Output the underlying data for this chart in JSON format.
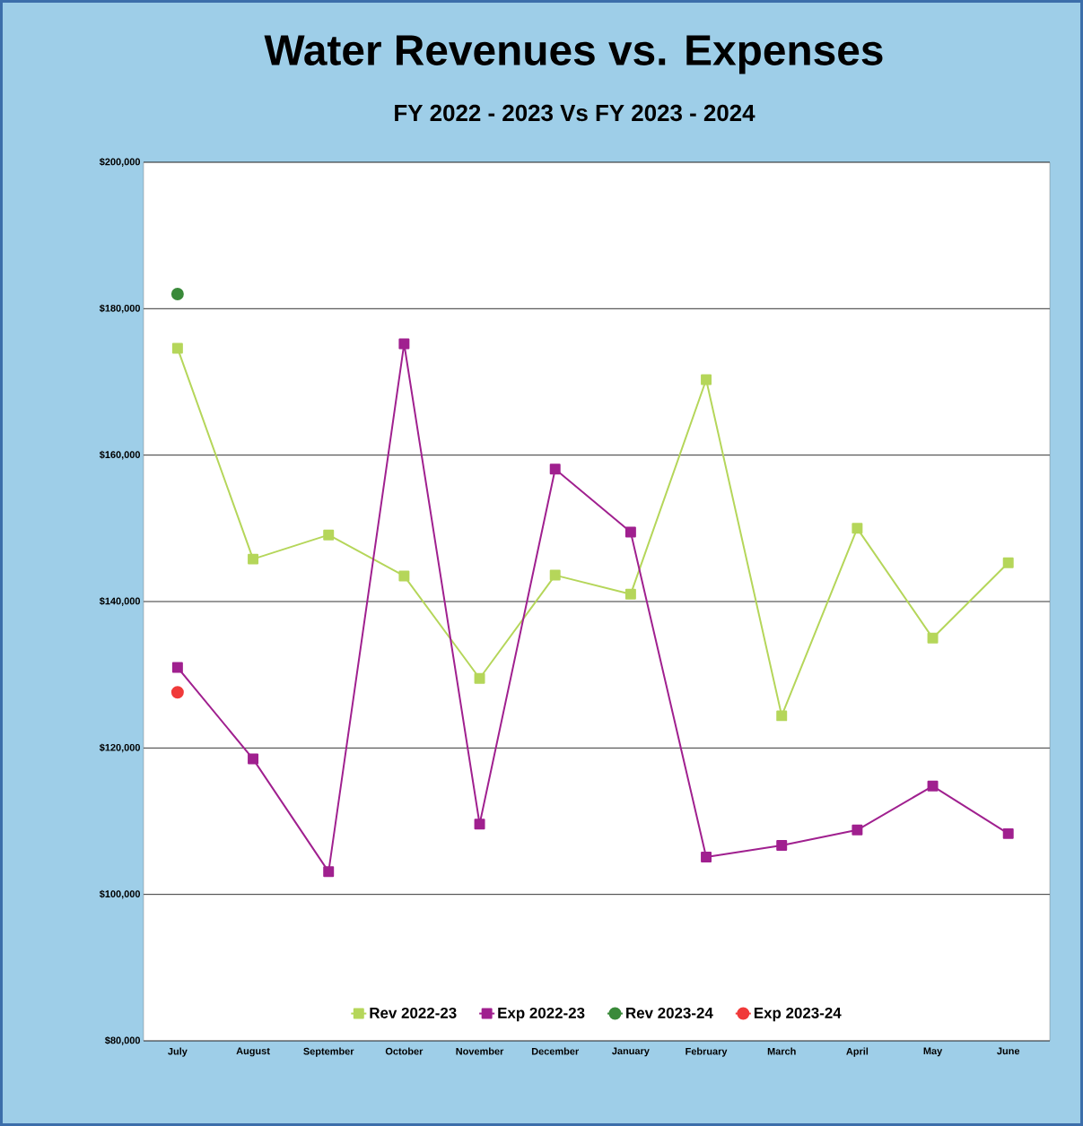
{
  "chart_data": {
    "type": "line",
    "title": "Water Revenues vs. Expenses",
    "subtitle": "FY 2022 - 2023  Vs  FY 2023 - 2024",
    "categories": [
      "July",
      "August",
      "September",
      "October",
      "November",
      "December",
      "January",
      "February",
      "March",
      "April",
      "May",
      "June"
    ],
    "series": [
      {
        "name": "Rev 2022-23",
        "color": "#b5d65a",
        "marker": "square",
        "values": [
          174600,
          145800,
          149100,
          143500,
          129500,
          143600,
          141000,
          170300,
          124400,
          150000,
          135000,
          145300
        ]
      },
      {
        "name": "Exp 2022-23",
        "color": "#a0208f",
        "marker": "square",
        "values": [
          131000,
          118500,
          103100,
          175200,
          109600,
          158100,
          149500,
          105100,
          106700,
          108800,
          114800,
          108300
        ]
      },
      {
        "name": "Rev 2023-24",
        "color": "#3a8a3a",
        "marker": "circle",
        "values": [
          182000,
          null,
          null,
          null,
          null,
          null,
          null,
          null,
          null,
          null,
          null,
          null
        ]
      },
      {
        "name": "Exp 2023-24",
        "color": "#f03a3a",
        "marker": "circle",
        "values": [
          127600,
          null,
          null,
          null,
          null,
          null,
          null,
          null,
          null,
          null,
          null,
          null
        ]
      }
    ],
    "ylim": [
      80000,
      200000
    ],
    "yticks": [
      {
        "value": 80000,
        "label": "$80,000"
      },
      {
        "value": 100000,
        "label": "$100,000"
      },
      {
        "value": 120000,
        "label": "$120,000"
      },
      {
        "value": 140000,
        "label": "$140,000"
      },
      {
        "value": 160000,
        "label": "$160,000"
      },
      {
        "value": 180000,
        "label": "$180,000"
      },
      {
        "value": 200000,
        "label": "$200,000"
      }
    ],
    "grid": "y",
    "legend": "bottom",
    "line_style": "solid"
  }
}
